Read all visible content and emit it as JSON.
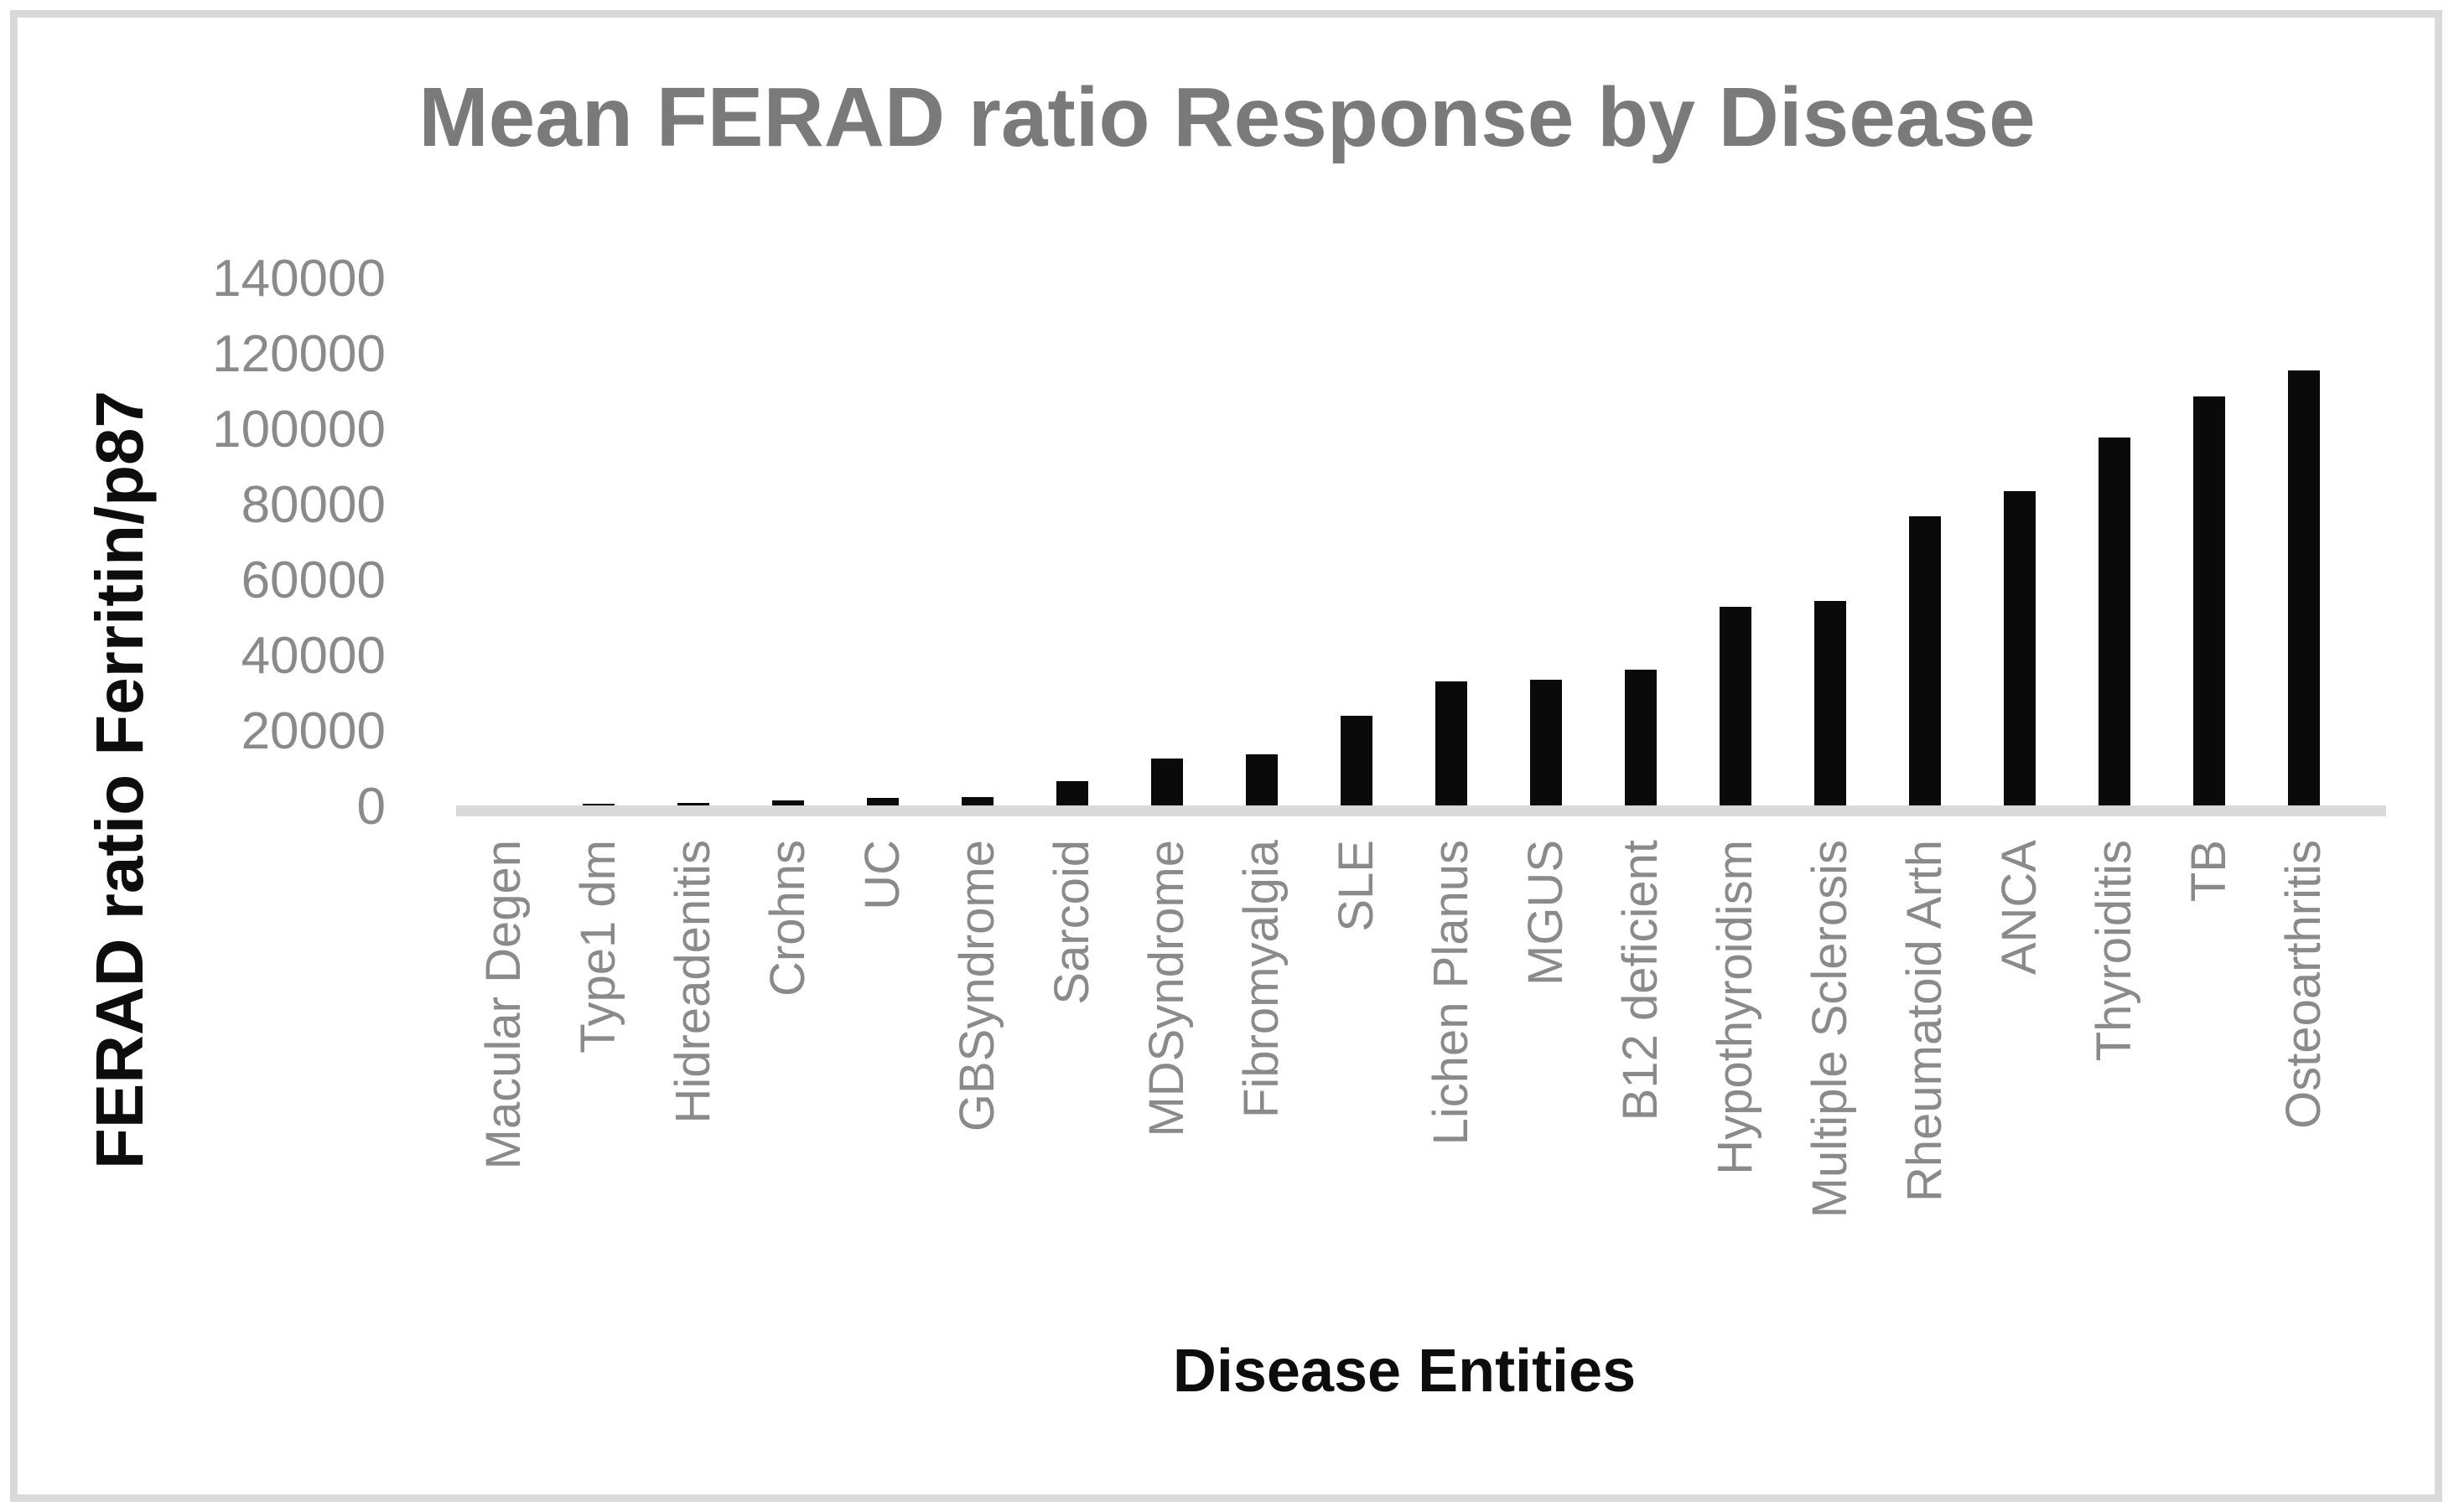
{
  "figure": {
    "border_color": "#d9d9d9",
    "background": "#ffffff"
  },
  "chart_data": {
    "type": "bar",
    "title": "Mean FERAD ratio Response by Disease",
    "xlabel": "Disease Entities",
    "ylabel": "FERAD ratio Ferritin/p87",
    "categories": [
      "Macular Degen",
      "Type1 dm",
      "Hidreadenitis",
      "Crohns",
      "UC",
      "GBSyndrome",
      "Sarcoid",
      "MDSyndrome",
      "Fibromyalgia",
      "SLE",
      "Lichen Planus",
      "MGUS",
      "B12 deficient",
      "Hypothyroidism",
      "Multiple Sclerosis",
      "Rheumatoid Arth",
      "ANCA",
      "Thyroiditis",
      "TB",
      "Osteoarthritis"
    ],
    "values": [
      100,
      400,
      600,
      1300,
      2000,
      2200,
      6500,
      12500,
      13600,
      23800,
      32800,
      33300,
      36100,
      52700,
      54200,
      76700,
      83400,
      97600,
      108500,
      115300
    ],
    "ylim": [
      0,
      140000
    ],
    "yticks": [
      0,
      20000,
      40000,
      60000,
      80000,
      100000,
      120000,
      140000
    ],
    "grid": false,
    "legend": false,
    "bar_color": "#0a0a0a",
    "axis_line_color": "#d9d9d9",
    "tick_label_color": "#8a8a8a",
    "title_color": "#7a7a7a",
    "axis_title_color": "#0d0d0d"
  }
}
